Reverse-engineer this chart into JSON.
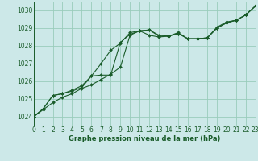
{
  "xlabel": "Graphe pression niveau de la mer (hPa)",
  "background_color": "#cce8e8",
  "grid_color": "#99ccbb",
  "line_color": "#1a5c2a",
  "xlim": [
    0,
    23
  ],
  "ylim": [
    1023.5,
    1030.5
  ],
  "yticks": [
    1024,
    1025,
    1026,
    1027,
    1028,
    1029,
    1030
  ],
  "xticks": [
    0,
    1,
    2,
    3,
    4,
    5,
    6,
    7,
    8,
    9,
    10,
    11,
    12,
    13,
    14,
    15,
    16,
    17,
    18,
    19,
    20,
    21,
    22,
    23
  ],
  "series1": [
    1024.0,
    1024.4,
    1024.8,
    1025.1,
    1025.3,
    1025.6,
    1025.8,
    1026.1,
    1026.4,
    1026.8,
    1028.6,
    1028.85,
    1028.9,
    1028.55,
    1028.55,
    1028.7,
    1028.4,
    1028.4,
    1028.45,
    1029.0,
    1029.3,
    1029.45,
    1029.75,
    1030.25
  ],
  "series2": [
    1024.0,
    1024.45,
    1025.2,
    1025.3,
    1025.45,
    1025.65,
    1026.3,
    1027.0,
    1027.75,
    1028.15,
    1028.75,
    1028.85,
    1028.9,
    1028.6,
    1028.55,
    1028.7,
    1028.4,
    1028.4,
    1028.45,
    1029.0,
    1029.3,
    1029.45,
    1029.75,
    1030.25
  ],
  "series3": [
    1024.0,
    1024.45,
    1025.2,
    1025.3,
    1025.5,
    1025.75,
    1026.3,
    1026.35,
    1026.35,
    1028.2,
    1028.65,
    1028.85,
    1028.6,
    1028.5,
    1028.55,
    1028.75,
    1028.4,
    1028.4,
    1028.45,
    1029.05,
    1029.35,
    1029.45,
    1029.75,
    1030.25
  ],
  "xlabel_fontsize": 6.0,
  "tick_fontsize": 5.5
}
